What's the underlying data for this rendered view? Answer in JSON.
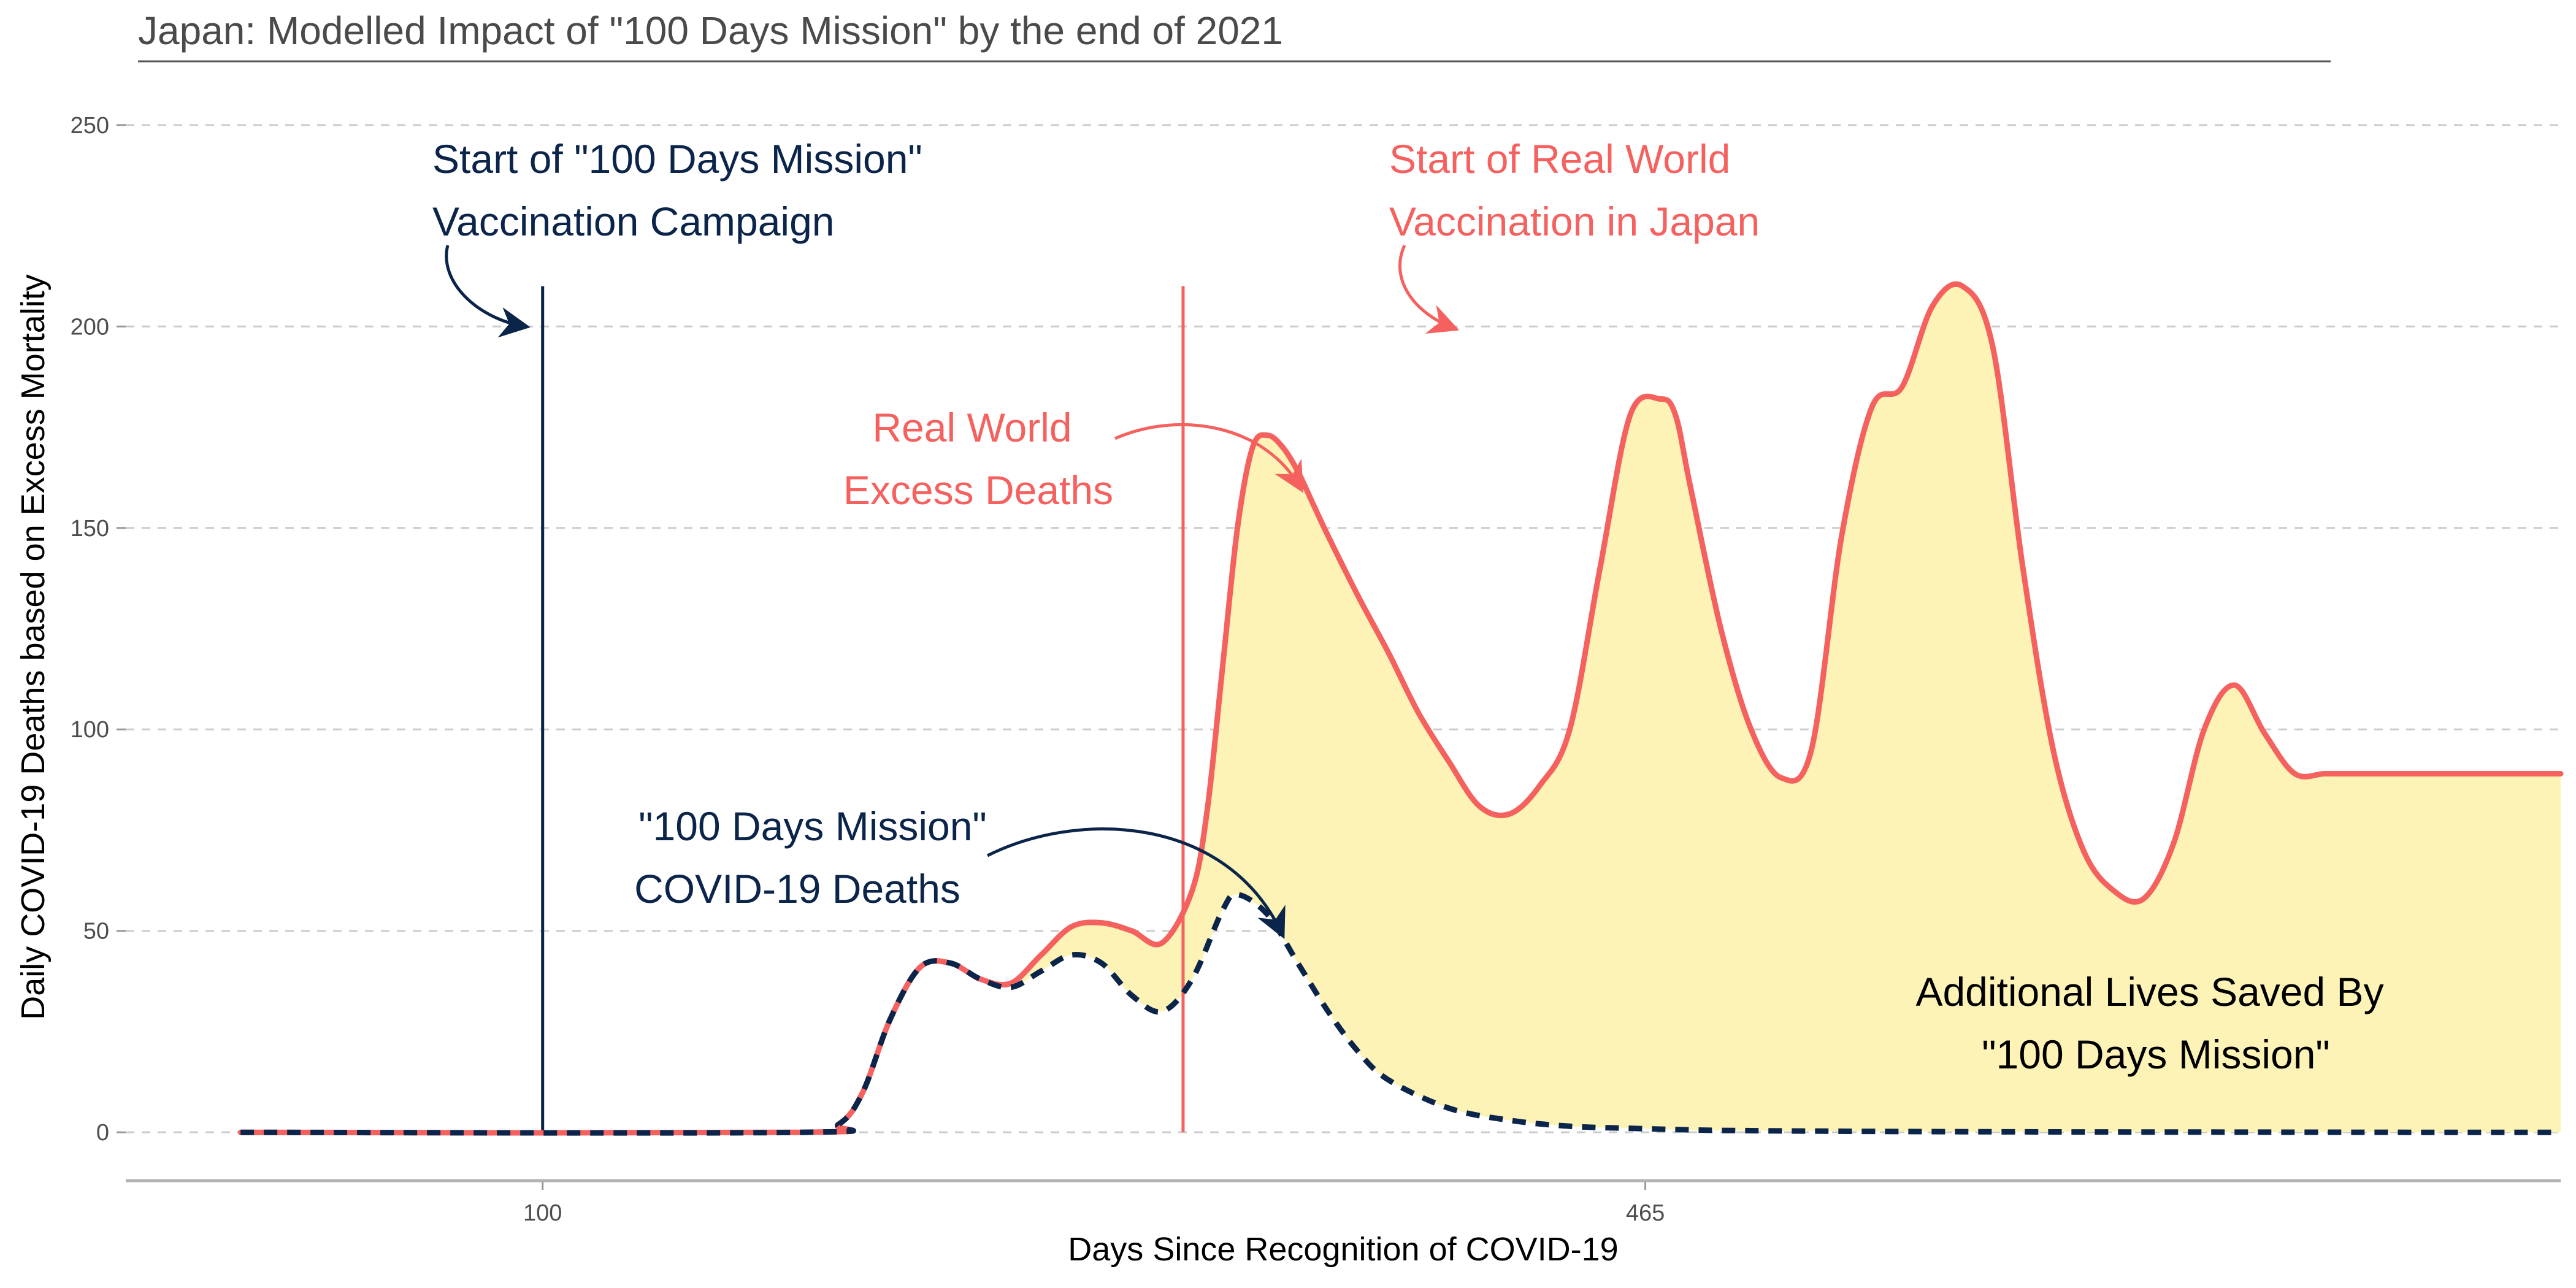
{
  "chart_data": {
    "type": "area",
    "title": "Japan: Modelled Impact of \"100 Days Mission\" by the end of 2021",
    "xlabel": "Days Since Recognition of COVID-19",
    "ylabel": "Daily COVID-19 Deaths based on Excess Mortality",
    "xlim": [
      -38,
      768
    ],
    "ylim": [
      -12,
      262
    ],
    "x_ticks": [
      100,
      465
    ],
    "x_tick_labels": [
      "100",
      "465"
    ],
    "y_ticks": [
      0,
      50,
      100,
      150,
      200,
      250
    ],
    "y_tick_labels": [
      "0",
      "50",
      "100",
      "150",
      "200",
      "250"
    ],
    "grid": "horizontal dashed",
    "legend": "none",
    "series": [
      {
        "name": "Real World Excess Deaths",
        "color": "#f4615f",
        "style": "solid",
        "x": [
          0,
          185,
          198,
          206,
          215,
          225,
          235,
          245,
          255,
          265,
          275,
          285,
          295,
          305,
          315,
          320,
          325,
          330,
          335,
          340,
          345,
          350,
          355,
          360,
          370,
          380,
          390,
          400,
          410,
          420,
          430,
          440,
          450,
          460,
          470,
          475,
          480,
          490,
          500,
          510,
          520,
          530,
          540,
          550,
          560,
          570,
          580,
          590,
          600,
          610,
          620,
          630,
          640,
          650,
          660,
          670,
          680,
          690,
          700,
          710,
          720,
          730,
          740,
          750,
          758,
          768
        ],
        "y": [
          0,
          0,
          2,
          10,
          28,
          41,
          42,
          38,
          37,
          44,
          51,
          52,
          50,
          47,
          60,
          80,
          115,
          150,
          170,
          173,
          170,
          164,
          156,
          148,
          133,
          119,
          104,
          92,
          81,
          79,
          86,
          100,
          140,
          178,
          182,
          178,
          160,
          125,
          100,
          88,
          95,
          148,
          180,
          185,
          205,
          210,
          195,
          140,
          95,
          70,
          60,
          58,
          72,
          100,
          111,
          99,
          89,
          89,
          89,
          89,
          89,
          89,
          89,
          89,
          89,
          89
        ]
      },
      {
        "name": "\"100 Days Mission\" COVID-19 Deaths",
        "color": "#0b244a",
        "style": "dashed",
        "x": [
          0,
          185,
          198,
          206,
          215,
          225,
          235,
          245,
          255,
          265,
          275,
          285,
          295,
          305,
          315,
          325,
          330,
          340,
          350,
          360,
          370,
          380,
          400,
          420,
          440,
          460,
          480,
          500,
          550,
          600,
          650,
          720,
          768
        ],
        "y": [
          0,
          0,
          2,
          10,
          28,
          41,
          42,
          38,
          36,
          40,
          44,
          42,
          34,
          30,
          38,
          55,
          59,
          54,
          42,
          30,
          20,
          13,
          6,
          3,
          1.5,
          1,
          0.6,
          0.4,
          0.2,
          0.1,
          0.05,
          0,
          0
        ]
      }
    ],
    "vlines": [
      {
        "x": 100,
        "ymax": 210,
        "color": "#0b244a"
      },
      {
        "x": 312,
        "ymax": 210,
        "color": "#f4615f",
        "ymin": 0
      }
    ],
    "annotations": [
      {
        "lines": [
          "Start of \"100 Days Mission\"",
          "Vaccination Campaign"
        ],
        "color": "#0b244a",
        "align": "left"
      },
      {
        "lines": [
          "Start of Real World",
          "Vaccination in Japan"
        ],
        "color": "#f4615f",
        "align": "left"
      },
      {
        "lines": [
          "Real World",
          "Excess Deaths"
        ],
        "color": "#f4615f",
        "align": "center"
      },
      {
        "lines": [
          "\"100 Days Mission\"",
          "COVID-19 Deaths"
        ],
        "color": "#0b244a",
        "align": "center"
      },
      {
        "lines": [
          "Additional Lives Saved By",
          "\"100 Days Mission\""
        ],
        "color": "#000000",
        "align": "center"
      }
    ],
    "fill_between_color": "#fdf3b6"
  }
}
